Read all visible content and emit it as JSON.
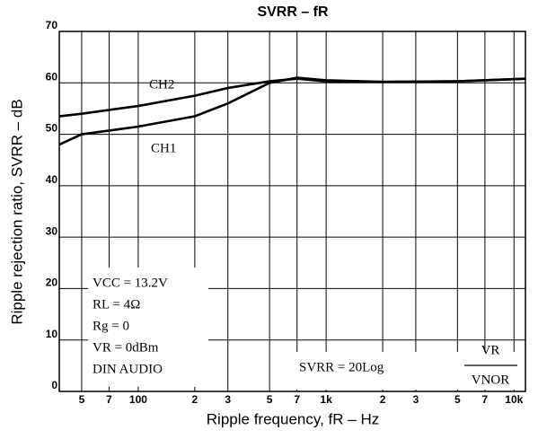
{
  "chart_data": {
    "type": "line",
    "title": "SVRR – fR",
    "x_label": "Ripple frequency, fR – Hz",
    "y_label": "Ripple rejection ratio, SVRR – dB",
    "x_scale": "log",
    "grid": true,
    "xlim": [
      38,
      11500
    ],
    "ylim": [
      0,
      70
    ],
    "xticks": [
      {
        "value": 50,
        "label": "5"
      },
      {
        "value": 70,
        "label": "7"
      },
      100,
      {
        "value": 200,
        "label": "2"
      },
      {
        "value": 300,
        "label": "3"
      },
      {
        "value": 500,
        "label": "5"
      },
      {
        "value": 700,
        "label": "7"
      },
      {
        "value": 1000,
        "label": "1k"
      },
      {
        "value": 2000,
        "label": "2"
      },
      {
        "value": 3000,
        "label": "3"
      },
      {
        "value": 5000,
        "label": "5"
      },
      {
        "value": 7000,
        "label": "7"
      },
      {
        "value": 10000,
        "label": "10k"
      }
    ],
    "yticks": [
      0,
      10,
      20,
      30,
      40,
      50,
      60,
      70
    ],
    "x": [
      38,
      50,
      100,
      200,
      300,
      500,
      700,
      1000,
      2000,
      5000,
      11500
    ],
    "series": [
      {
        "name": "CH2",
        "color": "#000000",
        "values": [
          53.5,
          54,
          55.5,
          57.5,
          59,
          60.3,
          60.8,
          60.3,
          60.2,
          60.3,
          60.8
        ]
      },
      {
        "name": "CH1",
        "color": "#000000",
        "values": [
          48,
          50,
          51.5,
          53.5,
          56,
          60,
          61,
          60.5,
          60.2,
          60.3,
          60.8
        ]
      }
    ],
    "conditions": [
      "VCC = 13.2V",
      "RL = 4Ω",
      "Rg = 0",
      "VR = 0dBm",
      "DIN AUDIO"
    ],
    "formula": "SVRR = 20Log",
    "fraction_top": "VR",
    "fraction_bottom": "VNOR"
  }
}
